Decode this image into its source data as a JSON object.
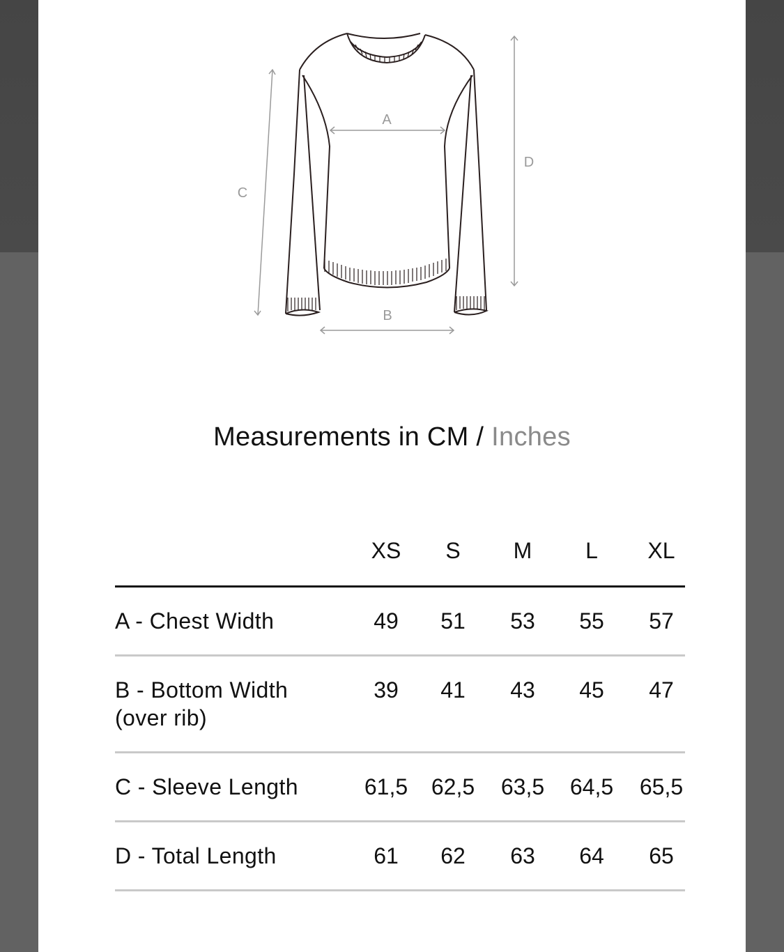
{
  "diagram": {
    "labels": {
      "a": "A",
      "b": "B",
      "c": "C",
      "d": "D"
    }
  },
  "title": {
    "primary": "Measurements in CM / ",
    "secondary": "Inches"
  },
  "table": {
    "sizes": [
      "XS",
      "S",
      "M",
      "L",
      "XL"
    ],
    "rows": [
      {
        "label": "A - Chest Width",
        "label2": "",
        "values": [
          "49",
          "51",
          "53",
          "55",
          "57"
        ]
      },
      {
        "label": "B - Bottom Width",
        "label2": "(over rib)",
        "values": [
          "39",
          "41",
          "43",
          "45",
          "47"
        ]
      },
      {
        "label": "C - Sleeve Length",
        "label2": "",
        "values": [
          "61,5",
          "62,5",
          "63,5",
          "64,5",
          "65,5"
        ]
      },
      {
        "label": "D - Total Length",
        "label2": "",
        "values": [
          "61",
          "62",
          "63",
          "64",
          "65"
        ]
      }
    ]
  }
}
